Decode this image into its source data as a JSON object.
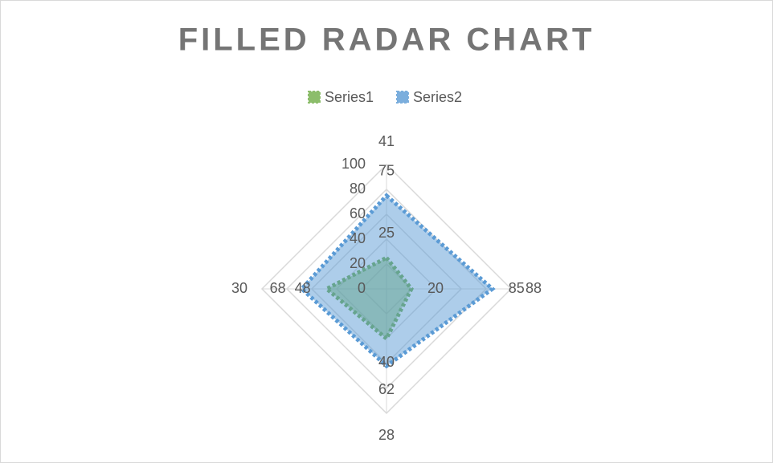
{
  "chart_data": {
    "type": "radar",
    "title": "FILLED RADAR CHART",
    "categories": [
      "41",
      "88",
      "28",
      "30"
    ],
    "series": [
      {
        "name": "Series1",
        "color": "#70ad47",
        "values": [
          25,
          20,
          40,
          48
        ]
      },
      {
        "name": "Series2",
        "color": "#5b9bd5",
        "values": [
          75,
          85,
          62,
          68
        ]
      }
    ],
    "ylim": [
      0,
      100
    ],
    "yticks": [
      0,
      20,
      40,
      60,
      80,
      100
    ],
    "grid": true,
    "legend": "top"
  }
}
